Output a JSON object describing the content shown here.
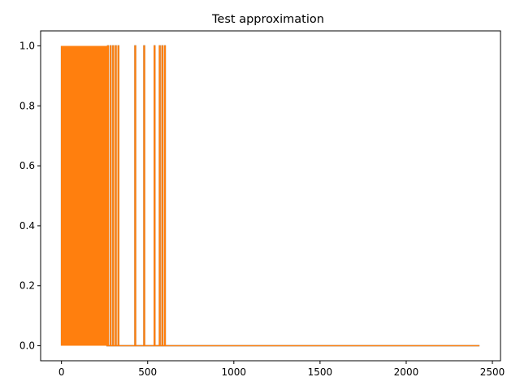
{
  "chart_data": {
    "type": "line",
    "title": "Test approximation",
    "xlabel": "",
    "ylabel": "",
    "xlim": [
      -121,
      2547
    ],
    "ylim": [
      -0.05,
      1.05
    ],
    "xticks": [
      0,
      500,
      1000,
      1500,
      2000,
      2500
    ],
    "yticks": [
      0.0,
      0.2,
      0.4,
      0.6,
      0.8,
      1.0
    ],
    "xtick_labels": [
      "0",
      "500",
      "1000",
      "1500",
      "2000",
      "2500"
    ],
    "ytick_labels": [
      "0.0",
      "0.2",
      "0.4",
      "0.6",
      "0.8",
      "1.0"
    ],
    "grid": false,
    "legend": "none",
    "series": [
      {
        "color": "#1f77b4",
        "dense_spike_region": [
          0,
          265
        ],
        "spike_x": [
          270,
          285,
          300,
          315,
          330,
          428,
          480,
          540,
          570,
          585,
          600
        ],
        "spike_y": 1.0,
        "baseline_y": 0.0,
        "x_end": 2425
      },
      {
        "color": "#ff7f0e",
        "dense_spike_region": [
          0,
          265
        ],
        "spike_x": [
          270,
          285,
          300,
          315,
          330,
          428,
          480,
          540,
          570,
          585,
          600
        ],
        "spike_y": 1.0,
        "baseline_y": 0.0,
        "x_end": 2425
      }
    ]
  }
}
